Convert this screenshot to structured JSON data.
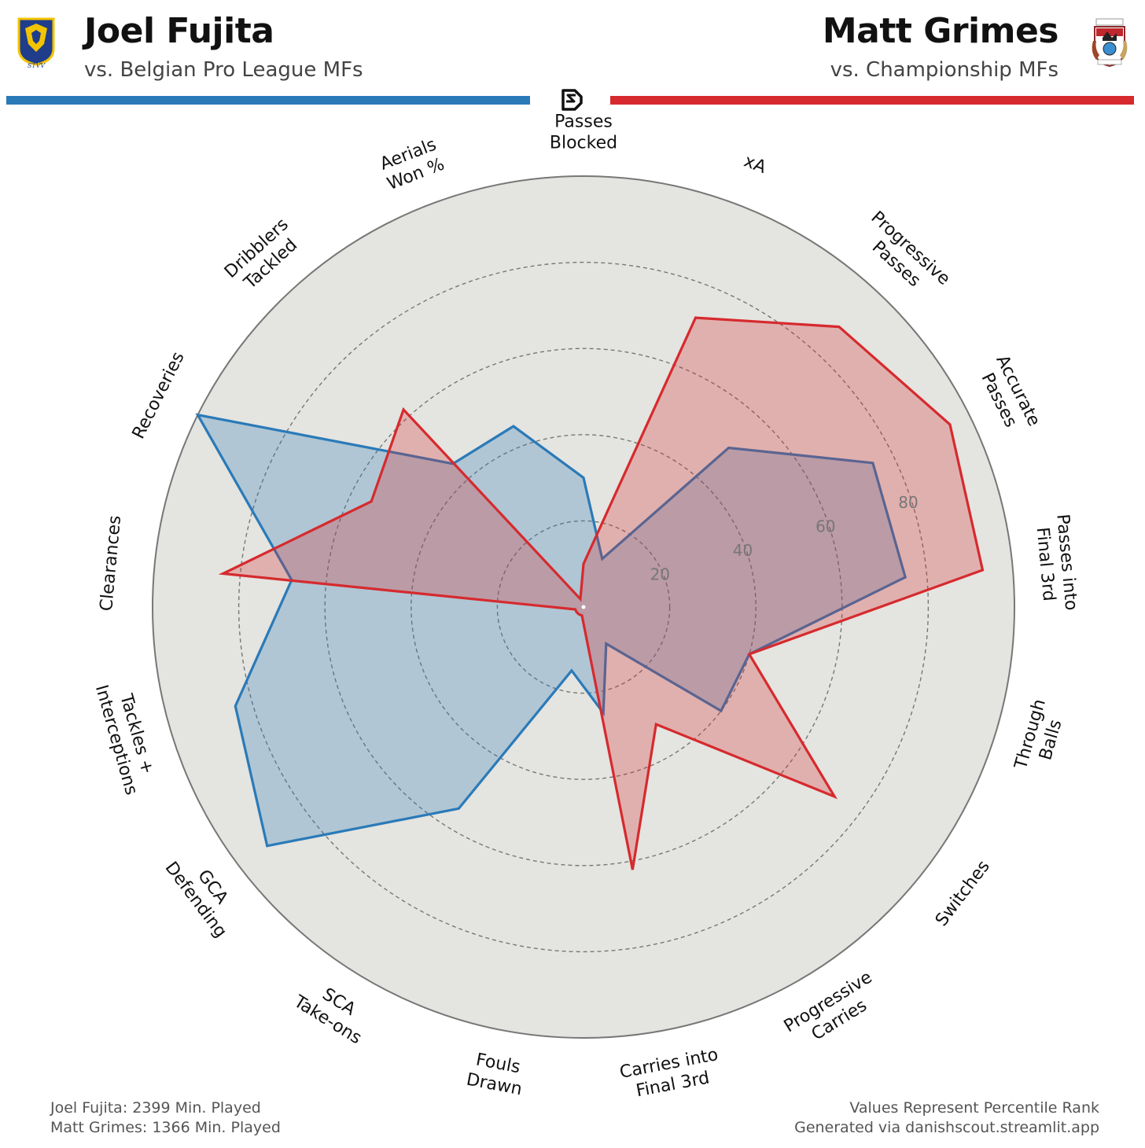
{
  "header": {
    "left": {
      "name": "Joel Fujita",
      "subtitle": "vs. Belgian Pro League MFs",
      "crest_text": "STVV",
      "color": "#2a7ab8"
    },
    "right": {
      "name": "Matt Grimes",
      "subtitle": "vs. Championship MFs",
      "color": "#d62a2e"
    },
    "brand_icon": "ds-logo-icon"
  },
  "chart_data": {
    "type": "radar",
    "scale": [
      0,
      100
    ],
    "ring_labels": [
      "20",
      "40",
      "60",
      "80"
    ],
    "grid_rings": [
      20,
      40,
      60,
      80
    ],
    "background": "#e4e4e0",
    "categories": [
      "Passes\nBlocked",
      "xA",
      "Progressive\nPasses",
      "Accurate\nPasses",
      "Passes into\nFinal 3rd",
      "Through\nBalls",
      "Switches",
      "Progressive\nCarries",
      "Carries into\nFinal 3rd",
      "Fouls\nDrawn",
      "SCA\nTake-ons",
      "GCA\nDefending",
      "Tackles +\nInterceptions",
      "Clearances",
      "Recoveries",
      "Dribblers\nTackled",
      "Aerials\nWon %"
    ],
    "series": [
      {
        "name": "Joel Fujita",
        "color": "#2a7ab8",
        "fill": "rgba(42,122,184,0.28)",
        "values": [
          30,
          12,
          50,
          75,
          75,
          40,
          40,
          10,
          25,
          15,
          55,
          92,
          84,
          68,
          100,
          45,
          45
        ]
      },
      {
        "name": "Matt Grimes",
        "color": "#d62a2e",
        "fill": "rgba(214,42,46,0.28)",
        "values": [
          10,
          72,
          88,
          95,
          93,
          40,
          73,
          32,
          62,
          2,
          2,
          2,
          2,
          84,
          55,
          62,
          2
        ]
      }
    ]
  },
  "footer": {
    "left_lines": [
      "Joel Fujita: 2399 Min. Played",
      "Matt Grimes: 1366 Min. Played"
    ],
    "right_lines": [
      "Values Represent Percentile Rank",
      "Generated via danishscout.streamlit.app"
    ]
  }
}
